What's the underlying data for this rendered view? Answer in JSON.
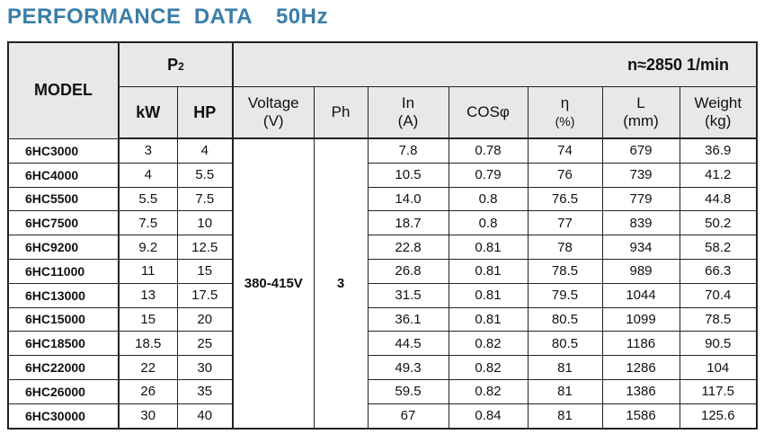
{
  "title": "PERFORMANCE  DATA",
  "frequency": "50Hz",
  "header": {
    "model": "MODEL",
    "p2": "P",
    "p2_sub": "2",
    "speed": "n≈2850 1/min",
    "kw": "kW",
    "hp": "HP",
    "voltage": "Voltage",
    "voltage_unit": "(V)",
    "ph": "Ph",
    "in": "In",
    "in_unit": "(A)",
    "cos": "COSφ",
    "eta": "η",
    "eta_unit": "(%)",
    "l": "L",
    "l_unit": "(mm)",
    "weight": "Weight",
    "weight_unit": "(kg)"
  },
  "voltage_value": "380-415V",
  "ph_value": "3",
  "rows": [
    {
      "model": "6HC3000",
      "kw": "3",
      "hp": "4",
      "in": "7.8",
      "cos": "0.78",
      "eta": "74",
      "l": "679",
      "weight": "36.9"
    },
    {
      "model": "6HC4000",
      "kw": "4",
      "hp": "5.5",
      "in": "10.5",
      "cos": "0.79",
      "eta": "76",
      "l": "739",
      "weight": "41.2"
    },
    {
      "model": "6HC5500",
      "kw": "5.5",
      "hp": "7.5",
      "in": "14.0",
      "cos": "0.8",
      "eta": "76.5",
      "l": "779",
      "weight": "44.8"
    },
    {
      "model": "6HC7500",
      "kw": "7.5",
      "hp": "10",
      "in": "18.7",
      "cos": "0.8",
      "eta": "77",
      "l": "839",
      "weight": "50.2"
    },
    {
      "model": "6HC9200",
      "kw": "9.2",
      "hp": "12.5",
      "in": "22.8",
      "cos": "0.81",
      "eta": "78",
      "l": "934",
      "weight": "58.2"
    },
    {
      "model": "6HC11000",
      "kw": "11",
      "hp": "15",
      "in": "26.8",
      "cos": "0.81",
      "eta": "78.5",
      "l": "989",
      "weight": "66.3"
    },
    {
      "model": "6HC13000",
      "kw": "13",
      "hp": "17.5",
      "in": "31.5",
      "cos": "0.81",
      "eta": "79.5",
      "l": "1044",
      "weight": "70.4"
    },
    {
      "model": "6HC15000",
      "kw": "15",
      "hp": "20",
      "in": "36.1",
      "cos": "0.81",
      "eta": "80.5",
      "l": "1099",
      "weight": "78.5"
    },
    {
      "model": "6HC18500",
      "kw": "18.5",
      "hp": "25",
      "in": "44.5",
      "cos": "0.82",
      "eta": "80.5",
      "l": "1186",
      "weight": "90.5"
    },
    {
      "model": "6HC22000",
      "kw": "22",
      "hp": "30",
      "in": "49.3",
      "cos": "0.82",
      "eta": "81",
      "l": "1286",
      "weight": "104"
    },
    {
      "model": "6HC26000",
      "kw": "26",
      "hp": "35",
      "in": "59.5",
      "cos": "0.82",
      "eta": "81",
      "l": "1386",
      "weight": "117.5"
    },
    {
      "model": "6HC30000",
      "kw": "30",
      "hp": "40",
      "in": "67",
      "cos": "0.84",
      "eta": "81",
      "l": "1586",
      "weight": "125.6"
    }
  ]
}
